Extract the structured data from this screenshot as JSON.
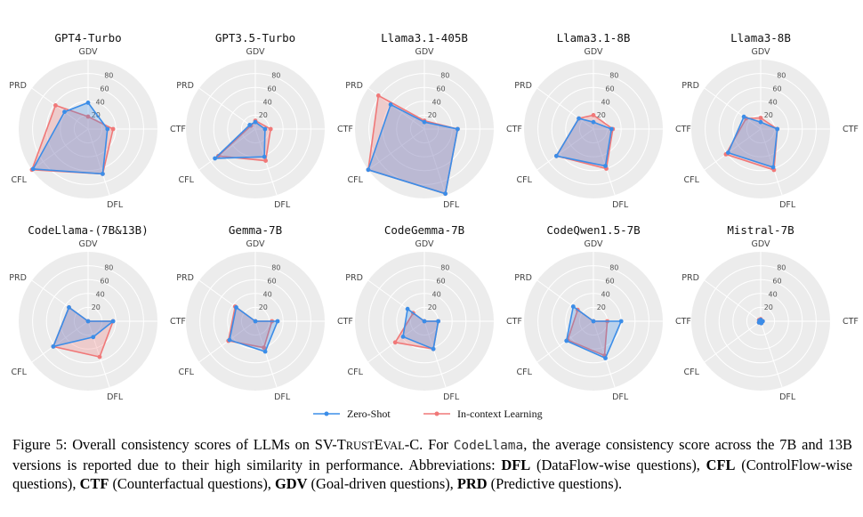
{
  "axes": {
    "order": [
      "GDV",
      "CTF",
      "DFL",
      "CFL",
      "PRD"
    ],
    "rmax": 100,
    "ticks": [
      20,
      40,
      60,
      80
    ]
  },
  "colors": {
    "zero_shot": "#3b8de8",
    "icl": "#f07878",
    "ring_bg": "#ececec",
    "grid": "#ffffff"
  },
  "legend": {
    "zero_shot": "Zero-Shot",
    "icl": "In-context Learning"
  },
  "chart_data": [
    {
      "type": "radar",
      "title": "GPT4-Turbo",
      "zero_shot": [
        38,
        28,
        68,
        98,
        42
      ],
      "icl": [
        18,
        36,
        68,
        100,
        58
      ]
    },
    {
      "type": "radar",
      "title": "GPT3.5-Turbo",
      "zero_shot": [
        10,
        14,
        42,
        72,
        10
      ],
      "icl": [
        12,
        22,
        48,
        66,
        8
      ]
    },
    {
      "type": "radar",
      "title": "Llama3.1-405B",
      "zero_shot": [
        10,
        48,
        98,
        100,
        60
      ],
      "icl": [
        12,
        48,
        98,
        100,
        82
      ]
    },
    {
      "type": "radar",
      "title": "Llama3.1-8B",
      "zero_shot": [
        10,
        26,
        56,
        66,
        26
      ],
      "icl": [
        20,
        28,
        60,
        66,
        26
      ]
    },
    {
      "type": "radar",
      "title": "Llama3-8B",
      "zero_shot": [
        10,
        24,
        58,
        58,
        30
      ],
      "icl": [
        16,
        24,
        62,
        62,
        26
      ]
    },
    {
      "type": "radar",
      "title": "CodeLlama-(7B&13B)",
      "zero_shot": [
        0,
        36,
        24,
        62,
        34
      ],
      "icl": [
        0,
        36,
        54,
        62,
        34
      ]
    },
    {
      "type": "radar",
      "title": "Gemma-7B",
      "zero_shot": [
        0,
        32,
        46,
        46,
        34
      ],
      "icl": [
        0,
        24,
        40,
        48,
        36
      ]
    },
    {
      "type": "radar",
      "title": "CodeGemma-7B",
      "zero_shot": [
        0,
        20,
        42,
        38,
        30
      ],
      "icl": [
        0,
        20,
        42,
        52,
        20
      ]
    },
    {
      "type": "radar",
      "title": "CodeQwen1.5-7B",
      "zero_shot": [
        0,
        40,
        56,
        48,
        36
      ],
      "icl": [
        0,
        20,
        52,
        46,
        28
      ]
    },
    {
      "type": "radar",
      "title": "Mistral-7B",
      "zero_shot": [
        2,
        3,
        3,
        3,
        2
      ],
      "icl": [
        3,
        3,
        3,
        3,
        3
      ]
    }
  ],
  "caption": {
    "p1": "Figure 5: Overall consistency scores of LLMs on SV-T",
    "p2": "RUST",
    "p3": "E",
    "p4": "VAL",
    "p5": "-C. For ",
    "mono": "CodeLlama",
    "p6": ", the average consistency score across the 7B and 13B versions is reported due to their high similarity in performance. Abbreviations: ",
    "dfl": "DFL",
    "dfl_desc": " (DataFlow-wise questions), ",
    "cfl": "CFL",
    "cfl_desc": " (ControlFlow-wise questions), ",
    "ctf": "CTF",
    "ctf_desc": " (Counterfactual questions), ",
    "gdv": "GDV",
    "gdv_desc": " (Goal-driven questions), ",
    "prd": "PRD",
    "prd_desc": " (Predictive questions)."
  }
}
